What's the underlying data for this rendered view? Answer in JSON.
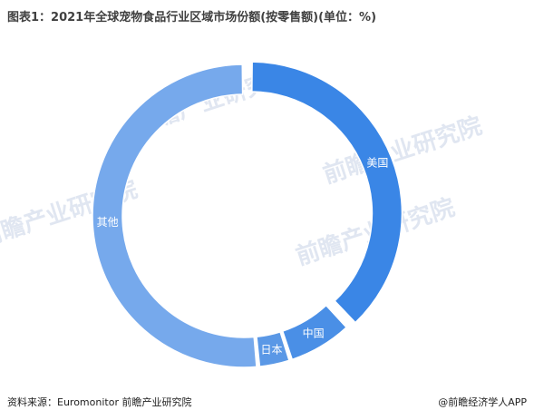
{
  "title": "图表1：2021年全球宠物食品行业区域市场份额(按零售额)(单位：%)",
  "footer": {
    "source": "资料来源：Euromonitor 前瞻产业研究院",
    "brand": "@前瞻经济学人APP"
  },
  "watermark": "前瞻产业研究院",
  "chart_data": {
    "type": "pie",
    "style": "donut",
    "title": "图表1：2021年全球宠物食品行业区域市场份额(按零售额)(单位：%)",
    "categories": [
      "美国",
      "中国",
      "日本",
      "其他"
    ],
    "values": [
      38,
      7,
      3.5,
      51.5
    ],
    "exploded": [
      "美国"
    ],
    "colors": [
      "#3a86e6",
      "#4a8fe6",
      "#5a98e6",
      "#76a9ec"
    ],
    "legend": "none",
    "data_labels": "category names on slices"
  }
}
